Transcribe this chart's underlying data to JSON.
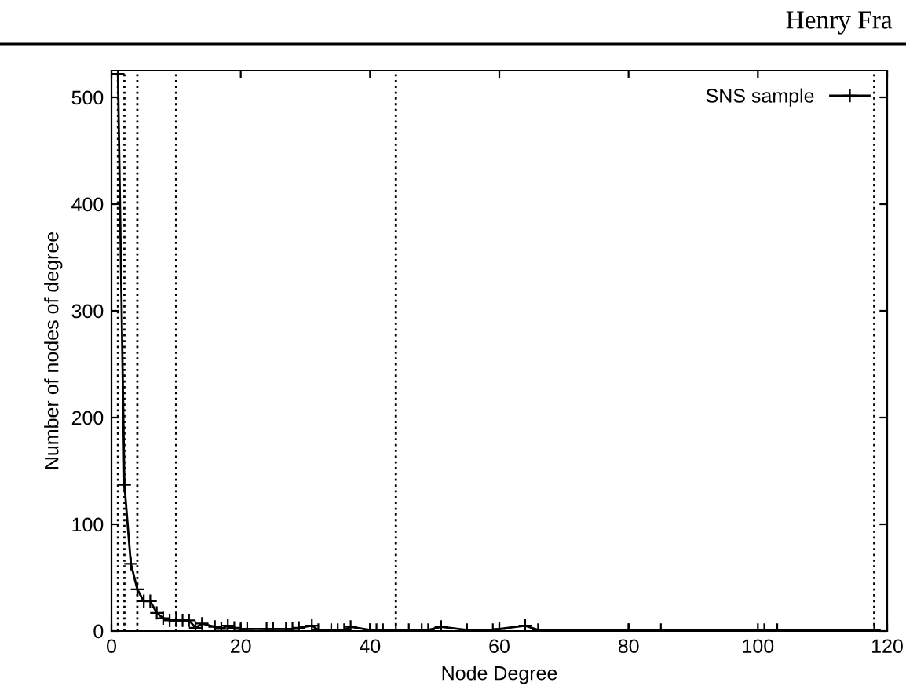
{
  "chart_data": {
    "type": "line",
    "xlabel": "Node Degree",
    "ylabel": "Number of nodes of degree",
    "annotations": [
      "Henry Fra"
    ],
    "series": [
      {
        "name": "SNS sample",
        "color": "#000000",
        "x": [
          1,
          2,
          3,
          4,
          5,
          6,
          7,
          8,
          9,
          10,
          11,
          12,
          13,
          14,
          16,
          17,
          18,
          19,
          20,
          21,
          24,
          25,
          27,
          28,
          29,
          31,
          32,
          34,
          35,
          36,
          37,
          40,
          41,
          42,
          44,
          46,
          48,
          49,
          51,
          55,
          59,
          60,
          64,
          66,
          80,
          85,
          101,
          103,
          118
        ],
        "values": [
          522,
          137,
          63,
          39,
          28,
          28,
          17,
          12,
          10,
          10,
          10,
          10,
          3,
          7,
          4,
          2,
          5,
          3,
          2,
          2,
          2,
          2,
          2,
          2,
          3,
          5,
          1,
          1,
          1,
          1,
          4,
          1,
          1,
          1,
          1,
          1,
          1,
          1,
          4,
          1,
          1,
          2,
          5,
          1,
          1,
          1,
          1,
          1,
          1
        ]
      }
    ],
    "xlim": [
      0,
      120
    ],
    "ylim": [
      0,
      525
    ],
    "xticks": [
      0,
      20,
      40,
      60,
      80,
      100,
      120
    ],
    "yticks": [
      0,
      100,
      200,
      300,
      400,
      500
    ],
    "ref_lines": [
      {
        "axis": "x",
        "value": 1,
        "line_style": "dotted"
      },
      {
        "axis": "x",
        "value": 2,
        "line_style": "dotted"
      },
      {
        "axis": "x",
        "value": 4,
        "line_style": "dotted"
      },
      {
        "axis": "x",
        "value": 10,
        "line_style": "dotted"
      },
      {
        "axis": "x",
        "value": 44,
        "line_style": "dotted"
      },
      {
        "axis": "x",
        "value": 118,
        "line_style": "dotted"
      }
    ],
    "marker": "cross",
    "line_style": "solid",
    "legend": "top right",
    "grid": false
  }
}
